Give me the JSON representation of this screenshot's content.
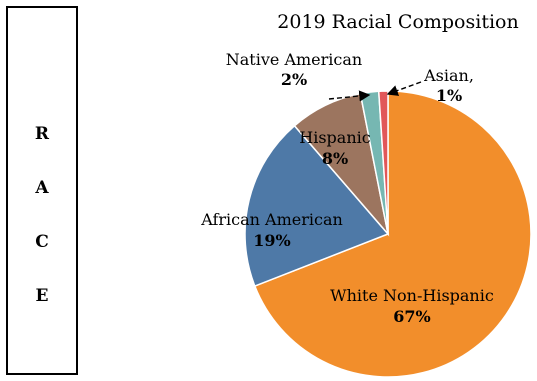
{
  "side_panel": {
    "letters": [
      "R",
      "A",
      "C",
      "E"
    ]
  },
  "chart_data": {
    "type": "pie",
    "title": "2019 Racial Composition",
    "slices": [
      {
        "label": "White Non-Hispanic",
        "value": 67,
        "display": "67%",
        "color": "#F28E2B"
      },
      {
        "label": "African American",
        "value": 19,
        "display": "19%",
        "color": "#4E79A7"
      },
      {
        "label": "Hispanic",
        "value": 8,
        "display": "8%",
        "color": "#9C755F"
      },
      {
        "label": "Native American",
        "value": 2,
        "display": "2%",
        "color": "#76B7B2"
      },
      {
        "label": "Asian,",
        "value": 1,
        "display": "1%",
        "color": "#E15759"
      }
    ]
  }
}
